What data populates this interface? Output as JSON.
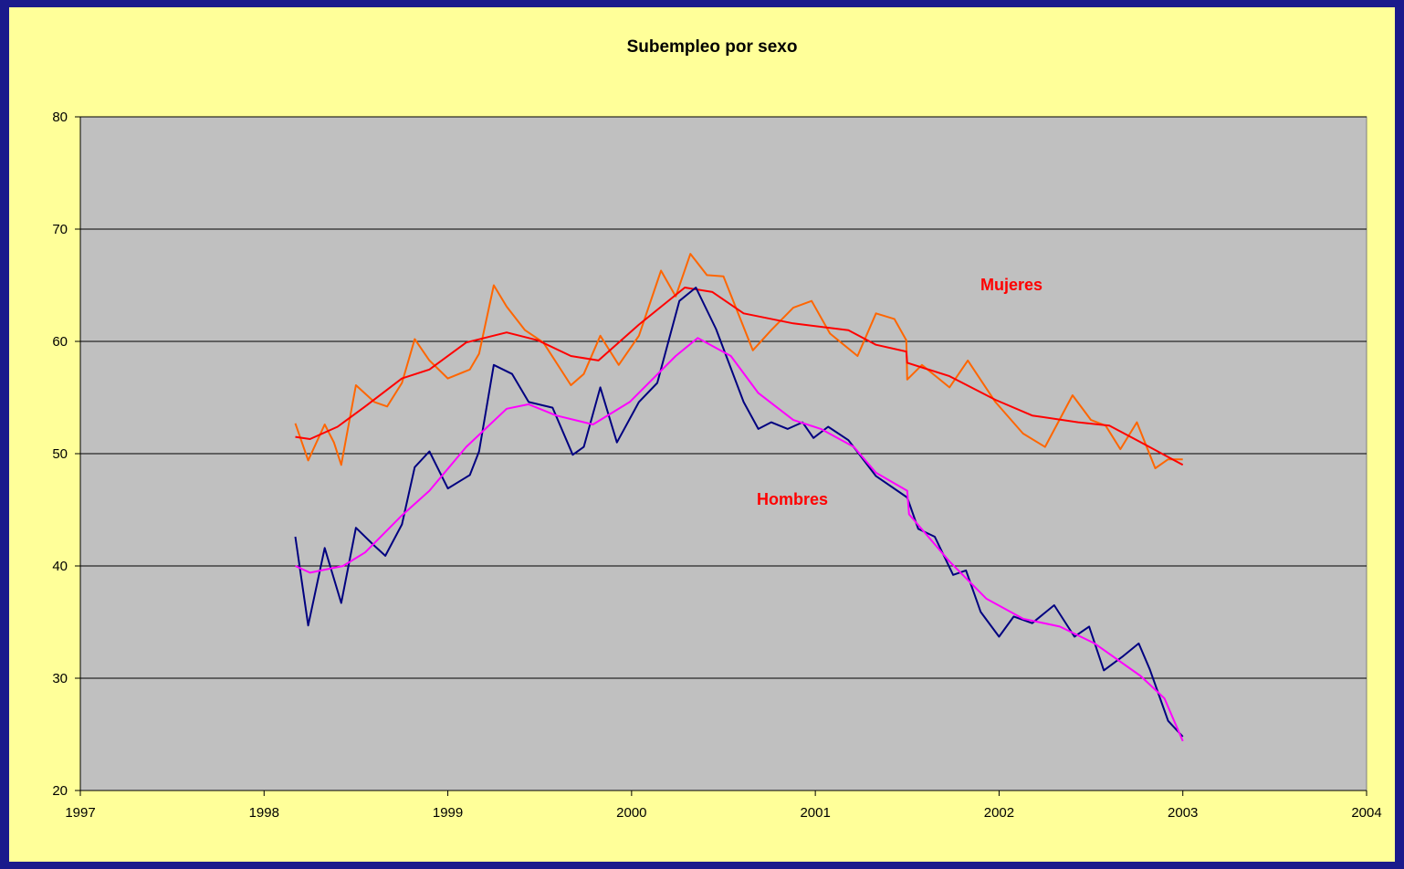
{
  "chart_data": {
    "type": "line",
    "title": "Subempleo por sexo",
    "xlim": [
      1997,
      2004
    ],
    "xticks": [
      1997,
      1998,
      1999,
      2000,
      2001,
      2002,
      2003,
      2004
    ],
    "ylim": [
      20,
      80
    ],
    "yticks": [
      20,
      30,
      40,
      50,
      60,
      70,
      80
    ],
    "grid": true,
    "annotations": [
      "Mujeres",
      "Hombres"
    ],
    "series": [
      {
        "color": "#ff6600",
        "x": [
          1998.17,
          1998.24,
          1998.33,
          1998.38,
          1998.42,
          1998.5,
          1998.6,
          1998.67,
          1998.75,
          1998.82,
          1998.9,
          1999.0,
          1999.12,
          1999.17,
          1999.25,
          1999.32,
          1999.42,
          1999.52,
          1999.67,
          1999.74,
          1999.83,
          1999.93,
          2000.04,
          2000.16,
          2000.24,
          2000.32,
          2000.41,
          2000.5,
          2000.58,
          2000.66,
          2000.76,
          2000.88,
          2000.98,
          2001.08,
          2001.23,
          2001.33,
          2001.43,
          2001.495,
          2001.5,
          2001.58,
          2001.73,
          2001.83,
          2001.98,
          2002.13,
          2002.25,
          2002.4,
          2002.5,
          2002.58,
          2002.66,
          2002.75,
          2002.85,
          2002.92,
          2003.0
        ],
        "values": [
          52.7,
          49.4,
          52.6,
          51.0,
          49.0,
          56.1,
          54.6,
          54.2,
          56.3,
          60.2,
          58.3,
          56.7,
          57.5,
          58.9,
          65.0,
          63.1,
          61.0,
          59.9,
          56.1,
          57.1,
          60.5,
          57.9,
          60.5,
          66.3,
          64.0,
          67.8,
          65.9,
          65.8,
          62.5,
          59.2,
          61.0,
          63.0,
          63.6,
          60.7,
          58.7,
          62.5,
          62.0,
          60.1,
          56.6,
          57.9,
          55.9,
          58.3,
          54.6,
          51.8,
          50.6,
          55.2,
          53.0,
          52.5,
          50.4,
          52.8,
          48.7,
          49.5,
          49.5
        ]
      },
      {
        "color": "#ff0000",
        "x": [
          1998.17,
          1998.25,
          1998.4,
          1998.55,
          1998.75,
          1998.9,
          1999.1,
          1999.32,
          1999.49,
          1999.67,
          1999.82,
          2000.04,
          2000.29,
          2000.44,
          2000.61,
          2000.88,
          2001.18,
          2001.33,
          2001.495,
          2001.5,
          2001.73,
          2001.98,
          2002.18,
          2002.43,
          2002.6,
          2002.75,
          2003.0
        ],
        "values": [
          51.5,
          51.3,
          52.4,
          54.2,
          56.7,
          57.5,
          59.9,
          60.8,
          60.1,
          58.7,
          58.3,
          61.5,
          64.8,
          64.4,
          62.5,
          61.6,
          61.0,
          59.7,
          59.1,
          58.1,
          56.9,
          54.8,
          53.4,
          52.8,
          52.5,
          51.2,
          49.0
        ]
      },
      {
        "color": "#000080",
        "x": [
          1998.17,
          1998.24,
          1998.33,
          1998.42,
          1998.5,
          1998.6,
          1998.66,
          1998.75,
          1998.82,
          1998.9,
          1999.0,
          1999.12,
          1999.17,
          1999.25,
          1999.35,
          1999.44,
          1999.57,
          1999.68,
          1999.74,
          1999.83,
          1999.92,
          2000.04,
          2000.14,
          2000.26,
          2000.35,
          2000.46,
          2000.61,
          2000.69,
          2000.76,
          2000.85,
          2000.93,
          2000.99,
          2001.07,
          2001.18,
          2001.33,
          2001.5,
          2001.56,
          2001.65,
          2001.75,
          2001.82,
          2001.9,
          2002.0,
          2002.08,
          2002.18,
          2002.3,
          2002.41,
          2002.49,
          2002.57,
          2002.67,
          2002.76,
          2002.82,
          2002.92,
          2003.0
        ],
        "values": [
          42.6,
          34.7,
          41.6,
          36.7,
          43.4,
          41.8,
          40.9,
          43.7,
          48.8,
          50.2,
          46.9,
          48.1,
          50.2,
          57.9,
          57.1,
          54.6,
          54.1,
          49.9,
          50.6,
          55.9,
          51.0,
          54.6,
          56.3,
          63.6,
          64.8,
          61.1,
          54.6,
          52.2,
          52.8,
          52.2,
          52.8,
          51.4,
          52.4,
          51.2,
          48.0,
          46.1,
          43.3,
          42.6,
          39.2,
          39.6,
          35.9,
          33.7,
          35.5,
          34.9,
          36.5,
          33.7,
          34.6,
          30.7,
          31.9,
          33.1,
          30.8,
          26.2,
          24.8
        ]
      },
      {
        "color": "#ff00ff",
        "x": [
          1998.17,
          1998.25,
          1998.43,
          1998.55,
          1998.75,
          1998.9,
          1999.1,
          1999.32,
          1999.44,
          1999.59,
          1999.79,
          1999.99,
          2000.24,
          2000.36,
          2000.54,
          2000.69,
          2000.88,
          2001.03,
          2001.21,
          2001.33,
          2001.5,
          2001.51,
          2001.73,
          2001.93,
          2002.13,
          2002.33,
          2002.52,
          2002.77,
          2002.9,
          2003.0
        ],
        "values": [
          40.0,
          39.4,
          40.0,
          41.2,
          44.5,
          46.7,
          50.6,
          54.0,
          54.4,
          53.4,
          52.6,
          54.6,
          58.7,
          60.3,
          58.7,
          55.4,
          53.0,
          52.2,
          50.6,
          48.3,
          46.7,
          44.6,
          40.4,
          37.1,
          35.3,
          34.6,
          33.1,
          30.2,
          28.2,
          24.4
        ]
      }
    ]
  }
}
